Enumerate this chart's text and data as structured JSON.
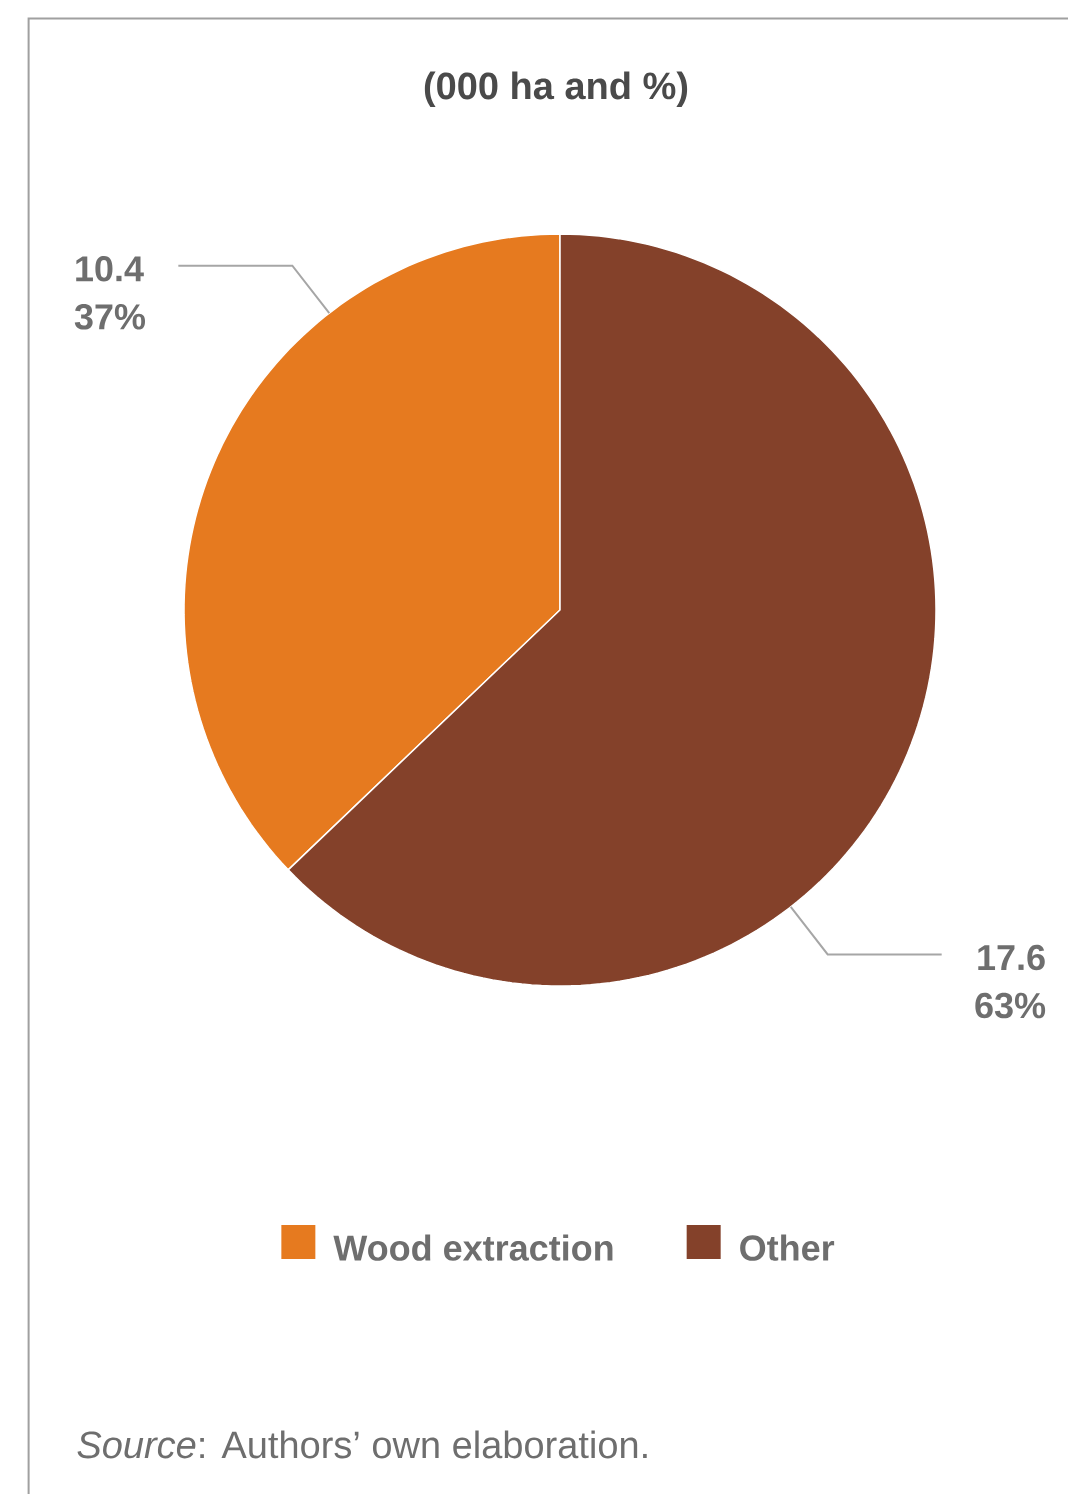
{
  "chart_data": {
    "type": "pie",
    "title": "(000 ha and %)",
    "categories": [
      "Wood extraction",
      "Other"
    ],
    "values": [
      10.4,
      17.6
    ],
    "colors": [
      "#e67a1f",
      "#84412a"
    ],
    "value_labels": [
      "10.4 37%",
      "17.6 63%"
    ],
    "legend": "bottom",
    "annotations": [
      "*Source*: Authors’ own elaboration."
    ]
  }
}
